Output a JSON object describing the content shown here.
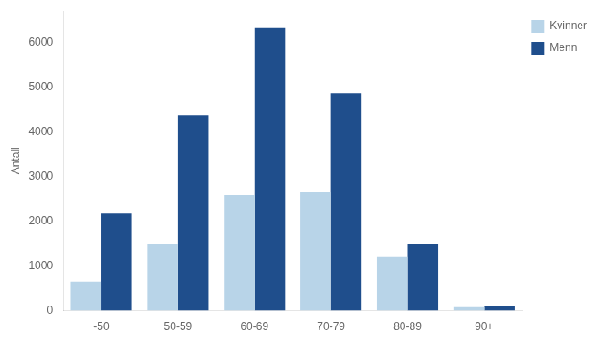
{
  "chart_data": {
    "type": "bar",
    "categories": [
      "-50",
      "50-59",
      "60-69",
      "70-79",
      "80-89",
      "90+"
    ],
    "series": [
      {
        "name": "Kvinner",
        "color": "#b8d4e8",
        "values": [
          650,
          1480,
          2580,
          2650,
          1200,
          80
        ]
      },
      {
        "name": "Menn",
        "color": "#1f4e8c",
        "values": [
          2170,
          4370,
          6320,
          4860,
          1500,
          100
        ]
      }
    ],
    "ylabel": "Antall",
    "ylim": [
      0,
      6700
    ],
    "yticks": [
      0,
      1000,
      2000,
      3000,
      4000,
      5000,
      6000
    ],
    "grid": false,
    "legend": "right"
  }
}
